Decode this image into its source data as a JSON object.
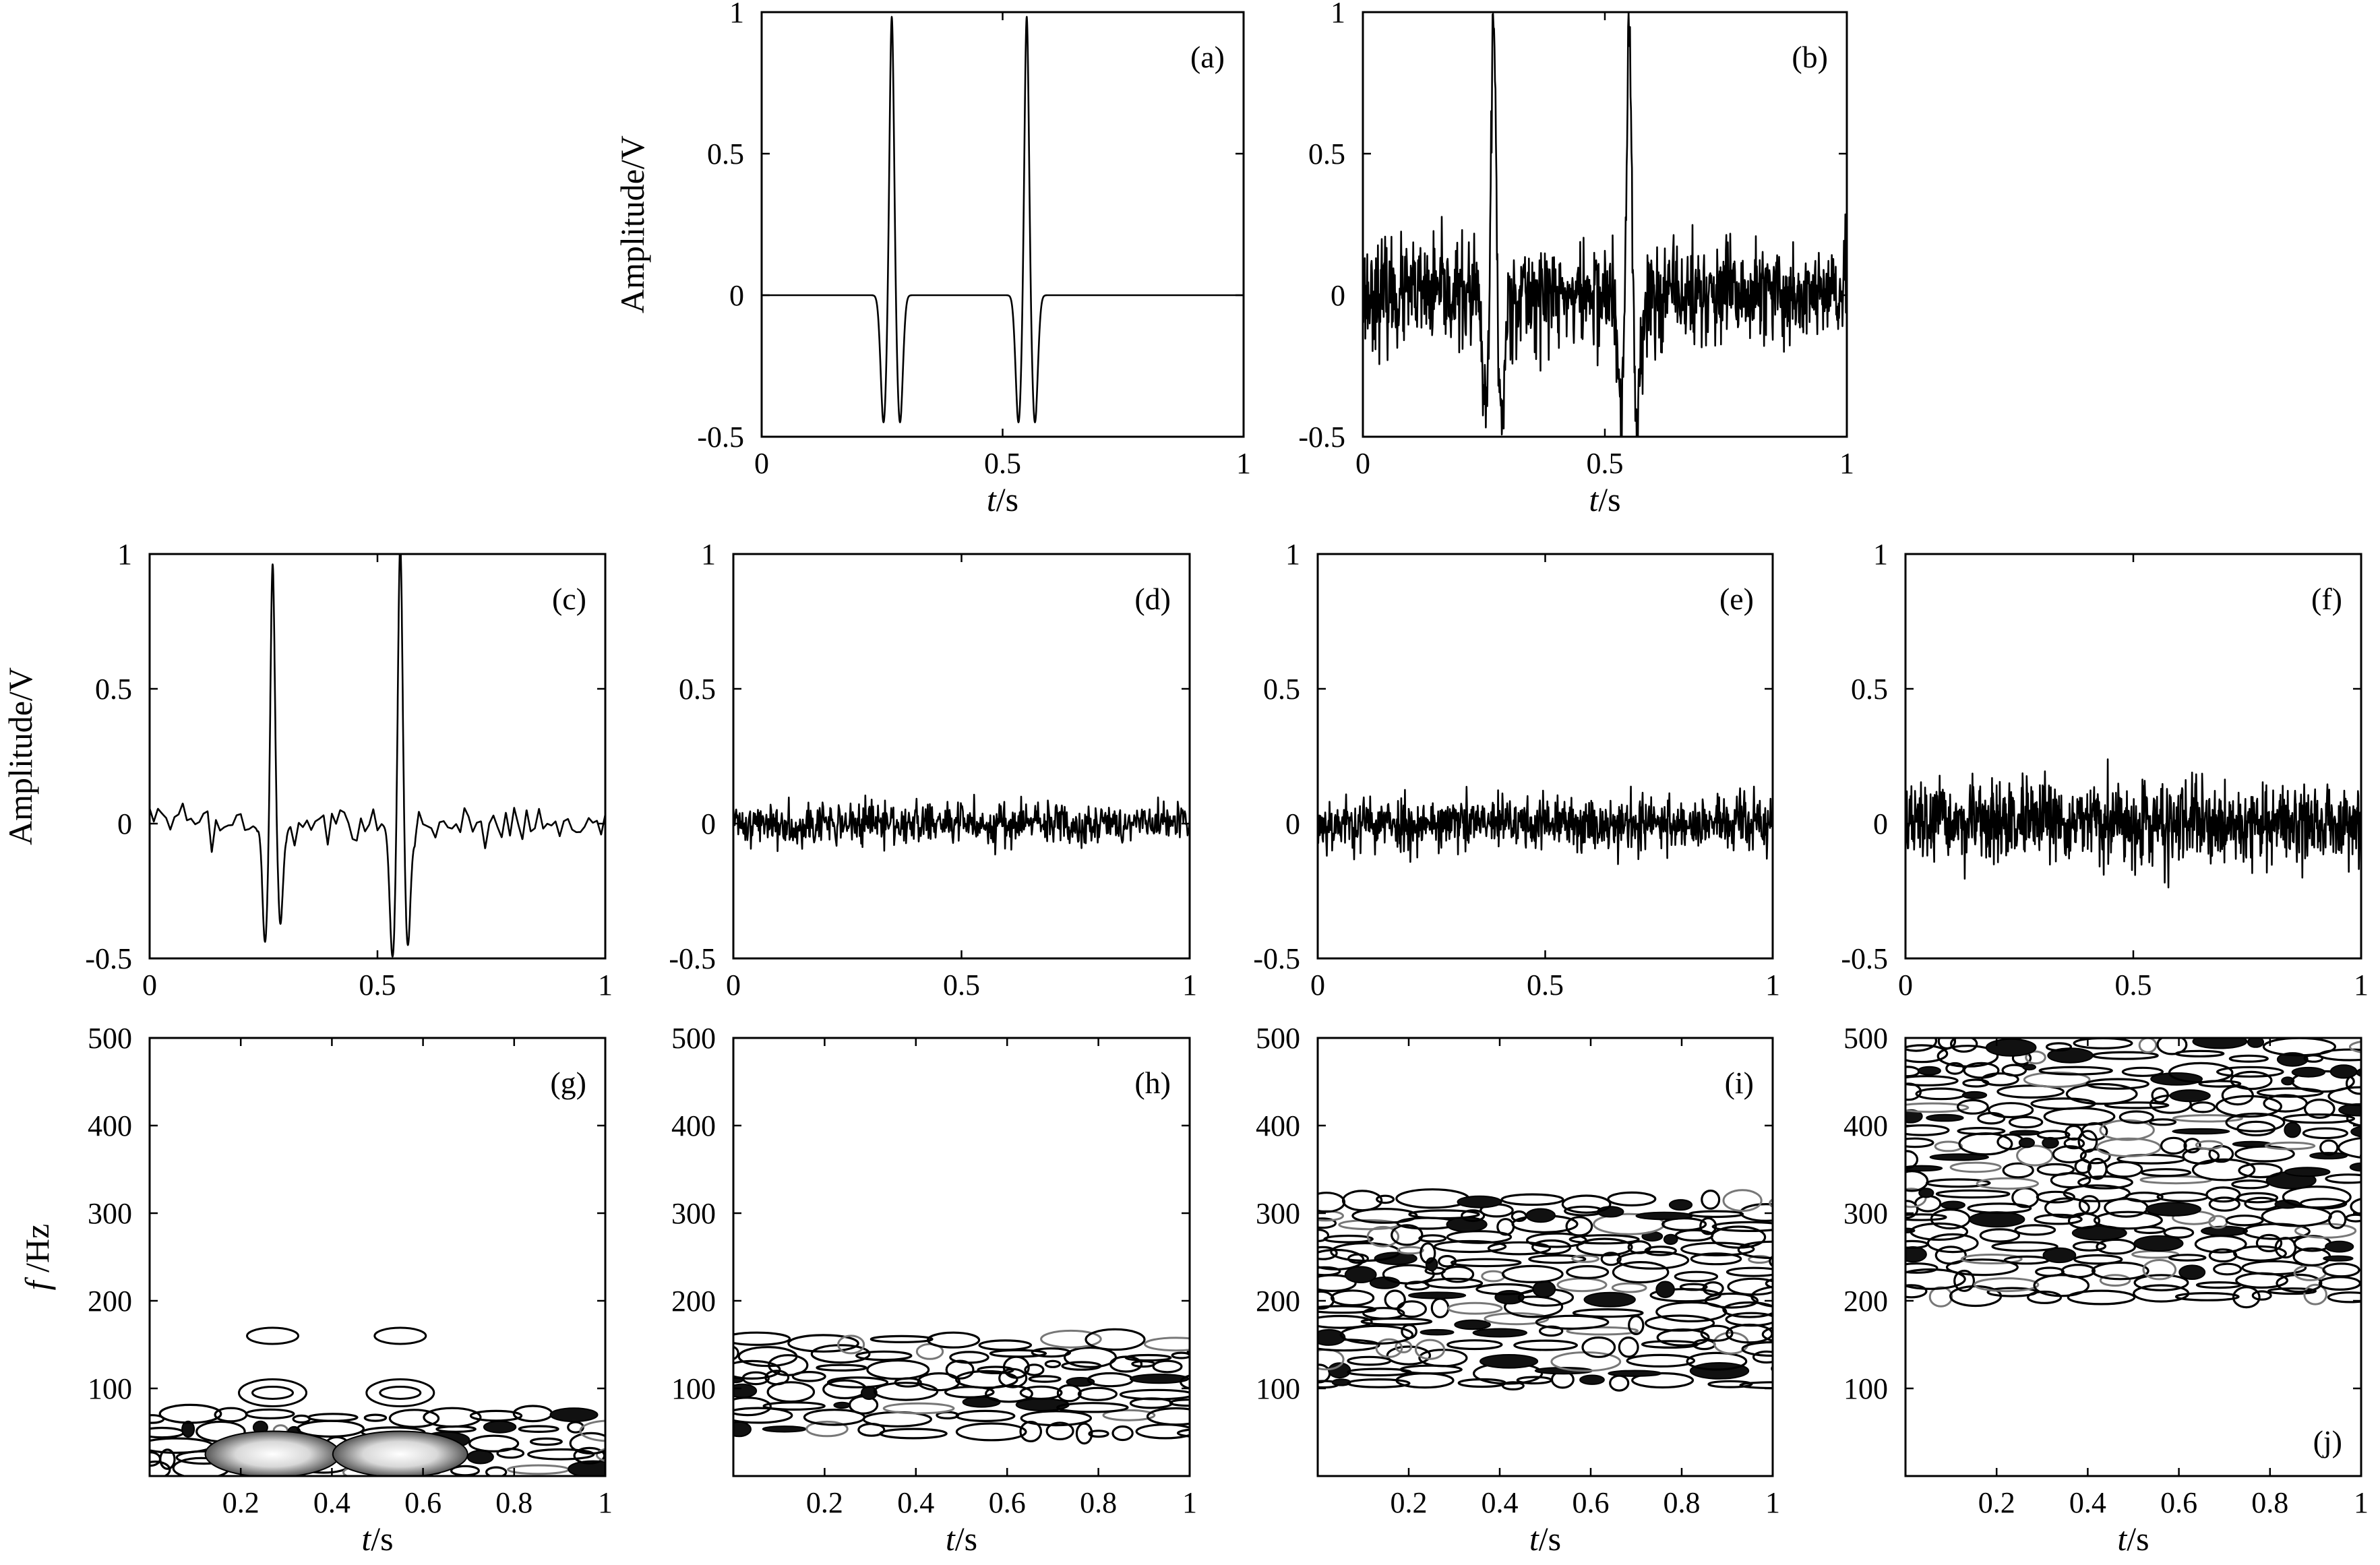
{
  "chart_data": [
    {
      "id": "a",
      "type": "line",
      "panel_label": "(a)",
      "xlim": [
        0,
        1
      ],
      "ylim": [
        -0.5,
        1
      ],
      "xticks": [
        0,
        0.5,
        1
      ],
      "yticks": [
        -0.5,
        0,
        0.5,
        1
      ],
      "xtick_labels": [
        "0",
        "0.5",
        "1"
      ],
      "ytick_labels": [
        "-0.5",
        "0",
        "0.5",
        "1"
      ],
      "xlabel": "t/s",
      "ylabel": "Amplitude/V",
      "series": [
        {
          "pulse_centers": [
            0.27,
            0.55
          ],
          "peak": 1,
          "trough": -0.45,
          "noise_sigma": 0
        }
      ]
    },
    {
      "id": "b",
      "type": "line",
      "panel_label": "(b)",
      "xlim": [
        0,
        1
      ],
      "ylim": [
        -0.5,
        1
      ],
      "xticks": [
        0,
        0.5,
        1
      ],
      "yticks": [
        -0.5,
        0,
        0.5,
        1
      ],
      "xtick_labels": [
        "0",
        "0.5",
        "1"
      ],
      "ytick_labels": [
        "-0.5",
        "0",
        "0.5",
        "1"
      ],
      "xlabel": "t/s",
      "ylabel": "",
      "series": [
        {
          "pulse_centers": [
            0.27,
            0.55
          ],
          "peak": 1,
          "trough": -0.45,
          "noise_sigma": 0.09
        }
      ]
    },
    {
      "id": "c",
      "type": "line",
      "panel_label": "(c)",
      "xlim": [
        0,
        1
      ],
      "ylim": [
        -0.5,
        1
      ],
      "xticks": [
        0,
        0.5,
        1
      ],
      "yticks": [
        -0.5,
        0,
        0.5,
        1
      ],
      "xtick_labels": [
        "0",
        "0.5",
        "1"
      ],
      "ytick_labels": [
        "-0.5",
        "0",
        "0.5",
        "1"
      ],
      "xlabel": "",
      "ylabel": "Amplitude/V",
      "series": [
        {
          "pulse_centers": [
            0.27,
            0.55
          ],
          "peak": 1,
          "trough": -0.45,
          "noise_sigma": 0.04
        }
      ]
    },
    {
      "id": "d",
      "type": "line",
      "panel_label": "(d)",
      "xlim": [
        0,
        1
      ],
      "ylim": [
        -0.5,
        1
      ],
      "xticks": [
        0,
        0.5,
        1
      ],
      "yticks": [
        -0.5,
        0,
        0.5,
        1
      ],
      "xtick_labels": [
        "0",
        "0.5",
        "1"
      ],
      "ytick_labels": [
        "-0.5",
        "0",
        "0.5",
        "1"
      ],
      "xlabel": "",
      "ylabel": "",
      "series": [
        {
          "pulse_centers": [],
          "noise_sigma": 0.04
        }
      ]
    },
    {
      "id": "e",
      "type": "line",
      "panel_label": "(e)",
      "xlim": [
        0,
        1
      ],
      "ylim": [
        -0.5,
        1
      ],
      "xticks": [
        0,
        0.5,
        1
      ],
      "yticks": [
        -0.5,
        0,
        0.5,
        1
      ],
      "xtick_labels": [
        "0",
        "0.5",
        "1"
      ],
      "ytick_labels": [
        "-0.5",
        "0",
        "0.5",
        "1"
      ],
      "xlabel": "",
      "ylabel": "",
      "series": [
        {
          "pulse_centers": [],
          "noise_sigma": 0.05
        }
      ]
    },
    {
      "id": "f",
      "type": "line",
      "panel_label": "(f)",
      "xlim": [
        0,
        1
      ],
      "ylim": [
        -0.5,
        1
      ],
      "xticks": [
        0,
        0.5,
        1
      ],
      "yticks": [
        -0.5,
        0,
        0.5,
        1
      ],
      "xtick_labels": [
        "0",
        "0.5",
        "1"
      ],
      "ytick_labels": [
        "-0.5",
        "0",
        "0.5",
        "1"
      ],
      "xlabel": "",
      "ylabel": "",
      "series": [
        {
          "pulse_centers": [],
          "noise_sigma": 0.07
        }
      ]
    },
    {
      "id": "g",
      "type": "heatmap",
      "panel_label": "(g)",
      "xlim": [
        0,
        1
      ],
      "ylim": [
        0,
        500
      ],
      "xticks": [
        0.2,
        0.4,
        0.6,
        0.8,
        1
      ],
      "yticks": [
        100,
        200,
        300,
        400,
        500
      ],
      "xtick_labels": [
        "0.2",
        "0.4",
        "0.6",
        "0.8",
        "1"
      ],
      "ytick_labels": [
        "100",
        "200",
        "300",
        "400",
        "500"
      ],
      "xlabel": "t/s",
      "ylabel": "f /Hz",
      "band_hz": [
        0,
        75
      ],
      "hotspots": [
        [
          0.27,
          25
        ],
        [
          0.55,
          25
        ]
      ],
      "isolated_contours": [
        [
          0.27,
          160
        ],
        [
          0.55,
          160
        ],
        [
          0.27,
          95
        ],
        [
          0.55,
          95
        ]
      ]
    },
    {
      "id": "h",
      "type": "heatmap",
      "panel_label": "(h)",
      "xlim": [
        0,
        1
      ],
      "ylim": [
        0,
        500
      ],
      "xticks": [
        0.2,
        0.4,
        0.6,
        0.8,
        1
      ],
      "yticks": [
        100,
        200,
        300,
        400,
        500
      ],
      "xtick_labels": [
        "0.2",
        "0.4",
        "0.6",
        "0.8",
        "1"
      ],
      "ytick_labels": [
        "100",
        "200",
        "300",
        "400",
        "500"
      ],
      "xlabel": "t/s",
      "ylabel": "",
      "band_hz": [
        45,
        160
      ]
    },
    {
      "id": "i",
      "type": "heatmap",
      "panel_label": "(i)",
      "xlim": [
        0,
        1
      ],
      "ylim": [
        0,
        500
      ],
      "xticks": [
        0.2,
        0.4,
        0.6,
        0.8,
        1
      ],
      "yticks": [
        100,
        200,
        300,
        400,
        500
      ],
      "xtick_labels": [
        "0.2",
        "0.4",
        "0.6",
        "0.8",
        "1"
      ],
      "ytick_labels": [
        "100",
        "200",
        "300",
        "400",
        "500"
      ],
      "xlabel": "t/s",
      "ylabel": "",
      "band_hz": [
        100,
        320
      ]
    },
    {
      "id": "j",
      "type": "heatmap",
      "panel_label": "(j)",
      "xlim": [
        0,
        1
      ],
      "ylim": [
        0,
        500
      ],
      "xticks": [
        0.2,
        0.4,
        0.6,
        0.8,
        1
      ],
      "yticks": [
        100,
        200,
        300,
        400,
        500
      ],
      "xtick_labels": [
        "0.2",
        "0.4",
        "0.6",
        "0.8",
        "1"
      ],
      "ytick_labels": [
        "100",
        "200",
        "300",
        "400",
        "500"
      ],
      "xlabel": "t/s",
      "ylabel": "",
      "band_hz": [
        200,
        500
      ]
    }
  ]
}
